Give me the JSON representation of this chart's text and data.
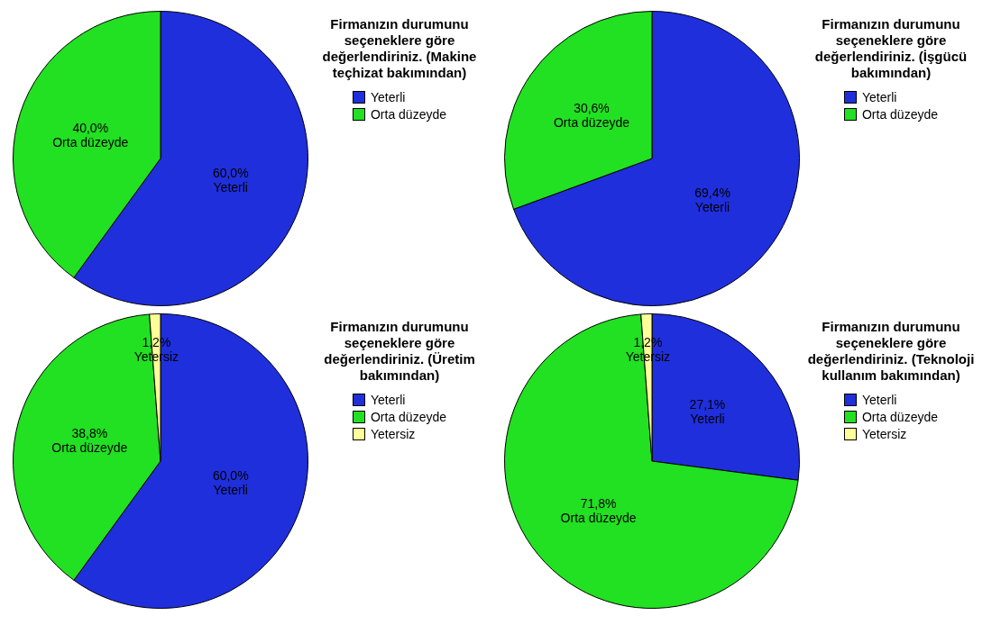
{
  "chart_data": [
    {
      "type": "pie",
      "legend_title": "Firmanızın durumunu seçeneklere göre değerlendiriniz. (Makine teçhizat bakımından)",
      "categories": [
        "Yeterli",
        "Orta düzeyde"
      ],
      "values": [
        60.0,
        40.0
      ],
      "colors": [
        "#1f2fdc",
        "#22e022"
      ],
      "value_labels": [
        "60,0%",
        "40,0%"
      ],
      "legend": "right"
    },
    {
      "type": "pie",
      "legend_title": "Firmanızın durumunu seçeneklere göre değerlendiriniz. (İşgücü bakımından)",
      "categories": [
        "Yeterli",
        "Orta düzeyde"
      ],
      "values": [
        69.4,
        30.6
      ],
      "colors": [
        "#1f2fdc",
        "#22e022"
      ],
      "value_labels": [
        "69,4%",
        "30,6%"
      ],
      "legend": "right"
    },
    {
      "type": "pie",
      "legend_title": "Firmanızın durumunu seçeneklere göre değerlendiriniz. (Üretim bakımından)",
      "categories": [
        "Yeterli",
        "Orta düzeyde",
        "Yetersiz"
      ],
      "values": [
        60.0,
        38.8,
        1.2
      ],
      "colors": [
        "#1f2fdc",
        "#22e022",
        "#ffff99"
      ],
      "value_labels": [
        "60,0%",
        "38,8%",
        "1,2%"
      ],
      "legend": "right"
    },
    {
      "type": "pie",
      "legend_title": "Firmanızın durumunu seçeneklere göre değerlendiriniz. (Teknoloji kullanım bakımından)",
      "categories": [
        "Yeterli",
        "Orta düzeyde",
        "Yetersiz"
      ],
      "values": [
        27.1,
        71.8,
        1.2
      ],
      "colors": [
        "#1f2fdc",
        "#22e022",
        "#ffff99"
      ],
      "value_labels": [
        "27,1%",
        "71,8%",
        "1,2%"
      ],
      "legend": "right"
    }
  ]
}
